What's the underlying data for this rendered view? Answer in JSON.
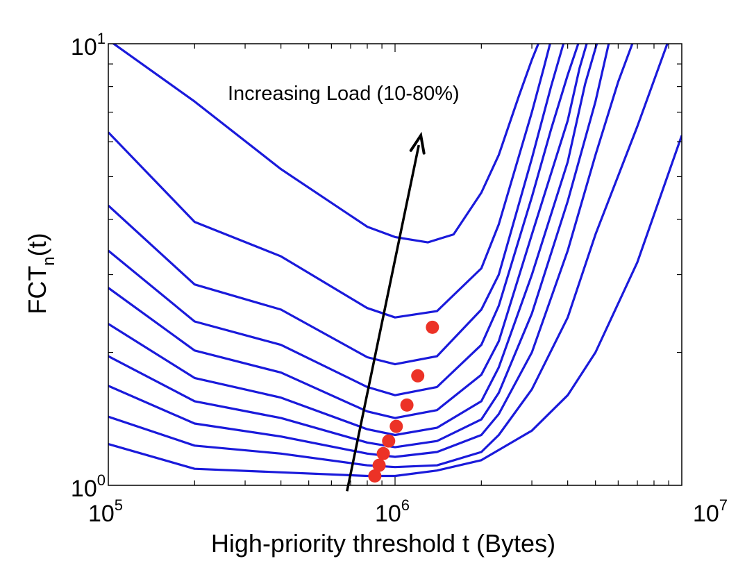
{
  "chart_data": {
    "type": "line",
    "xlabel": "High-priority threshold t (Bytes)",
    "ylabel": {
      "main": "FCT",
      "sub": "n",
      "tail": "(t)"
    },
    "xscale": "log",
    "yscale": "log",
    "xlim": [
      100000,
      10000000
    ],
    "ylim": [
      1,
      10
    ],
    "xticks": [
      {
        "value": 100000,
        "base": "10",
        "exp": "5"
      },
      {
        "value": 1000000,
        "base": "10",
        "exp": "6"
      },
      {
        "value": 10000000,
        "base": "10",
        "exp": "7"
      }
    ],
    "yticks": [
      {
        "value": 1,
        "base": "10",
        "exp": "0"
      },
      {
        "value": 10,
        "base": "10",
        "exp": "1"
      }
    ],
    "annotation": "Increasing Load (10-80%)",
    "arrow": {
      "from": [
        680000,
        0.97
      ],
      "to": [
        1230000,
        6.2
      ]
    },
    "line_color": "#1a1adb",
    "marker_color": "#ec3226",
    "series": [
      {
        "x": [
          100000,
          200000,
          400000,
          800000,
          1000000,
          1400000,
          2000000,
          3000000,
          4000000,
          5000000,
          7000000,
          10000000
        ],
        "y": [
          1.24,
          1.09,
          1.07,
          1.05,
          1.05,
          1.08,
          1.14,
          1.33,
          1.6,
          2.0,
          3.2,
          6.2
        ]
      },
      {
        "x": [
          100000,
          200000,
          400000,
          800000,
          1000000,
          1400000,
          2000000,
          2300000,
          3000000,
          4000000,
          5000000,
          7000000,
          9000000
        ],
        "y": [
          1.43,
          1.23,
          1.18,
          1.11,
          1.1,
          1.11,
          1.19,
          1.3,
          1.65,
          2.4,
          3.7,
          6.5,
          10.2
        ]
      },
      {
        "x": [
          100000,
          200000,
          400000,
          800000,
          1000000,
          1400000,
          2000000,
          2300000,
          3000000,
          4000000,
          5000000,
          6000000,
          6800000
        ],
        "y": [
          1.68,
          1.38,
          1.29,
          1.18,
          1.16,
          1.19,
          1.3,
          1.45,
          2.0,
          3.4,
          5.6,
          8.2,
          10.2
        ]
      },
      {
        "x": [
          100000,
          200000,
          400000,
          800000,
          1000000,
          1400000,
          2000000,
          2300000,
          3000000,
          4000000,
          5000000,
          5600000
        ],
        "y": [
          1.96,
          1.55,
          1.42,
          1.25,
          1.22,
          1.26,
          1.41,
          1.62,
          2.45,
          4.4,
          7.4,
          10.2
        ]
      },
      {
        "x": [
          100000,
          200000,
          400000,
          800000,
          1000000,
          1400000,
          2000000,
          2300000,
          3000000,
          4000000,
          4600000,
          5100000
        ],
        "y": [
          2.32,
          1.75,
          1.58,
          1.34,
          1.3,
          1.35,
          1.55,
          1.85,
          3.0,
          5.4,
          8.1,
          10.2
        ]
      },
      {
        "x": [
          100000,
          200000,
          400000,
          800000,
          1000000,
          1400000,
          2000000,
          2300000,
          3000000,
          4000000,
          4400000,
          4700000
        ],
        "y": [
          2.8,
          2.02,
          1.8,
          1.47,
          1.42,
          1.48,
          1.78,
          2.12,
          3.7,
          6.7,
          8.8,
          10.2
        ]
      },
      {
        "x": [
          100000,
          200000,
          400000,
          800000,
          1000000,
          1400000,
          2000000,
          2300000,
          3000000,
          3500000,
          4000000,
          4400000
        ],
        "y": [
          3.4,
          2.35,
          2.08,
          1.67,
          1.6,
          1.67,
          2.08,
          2.55,
          4.5,
          6.4,
          8.5,
          10.2
        ]
      },
      {
        "x": [
          100000,
          200000,
          400000,
          800000,
          1000000,
          1400000,
          2000000,
          2300000,
          3000000,
          3500000,
          3900000
        ],
        "y": [
          4.3,
          2.85,
          2.5,
          1.95,
          1.88,
          1.96,
          2.5,
          3.0,
          5.5,
          8.0,
          10.2
        ]
      },
      {
        "x": [
          100000,
          200000,
          400000,
          800000,
          1000000,
          1400000,
          2000000,
          2300000,
          3000000,
          3300000,
          3500000
        ],
        "y": [
          6.3,
          3.95,
          3.3,
          2.52,
          2.4,
          2.48,
          3.1,
          3.9,
          7.0,
          8.8,
          10.2
        ]
      },
      {
        "x": [
          100000,
          200000,
          400000,
          800000,
          1000000,
          1300000,
          1600000,
          2000000,
          2300000,
          2700000,
          3000000,
          3200000
        ],
        "y": [
          10.2,
          7.4,
          5.2,
          3.85,
          3.65,
          3.55,
          3.7,
          4.6,
          5.6,
          7.6,
          9.2,
          10.2
        ]
      }
    ],
    "optima": [
      {
        "x": 850000,
        "y": 1.05
      },
      {
        "x": 880000,
        "y": 1.11
      },
      {
        "x": 910000,
        "y": 1.18
      },
      {
        "x": 950000,
        "y": 1.26
      },
      {
        "x": 1010000,
        "y": 1.36
      },
      {
        "x": 1100000,
        "y": 1.52
      },
      {
        "x": 1200000,
        "y": 1.77
      },
      {
        "x": 1350000,
        "y": 2.28
      }
    ]
  }
}
